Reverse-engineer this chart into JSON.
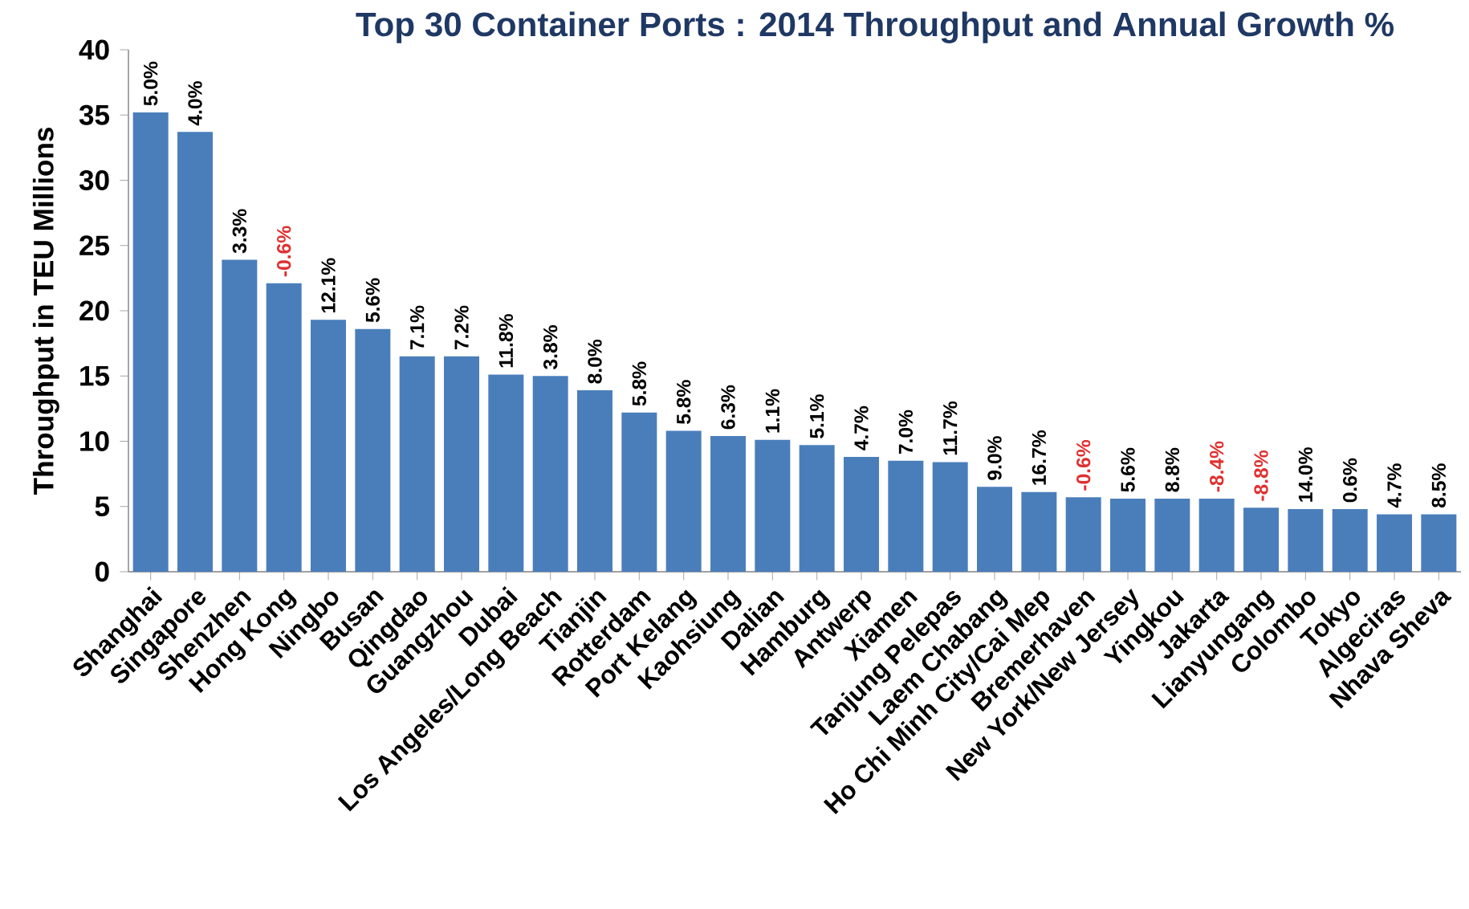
{
  "chart_data": {
    "type": "bar",
    "title": "Top 30 Container Ports : 2014 Throughput and Annual Growth %",
    "ylabel": "Throughput in TEU Millions",
    "categories": [
      "Shanghai",
      "Singapore",
      "Shenzhen",
      "Hong Kong",
      "Ningbo",
      "Busan",
      "Qingdao",
      "Guangzhou",
      "Dubai",
      "Los Angeles/Long Beach",
      "Tianjin",
      "Rotterdam",
      "Port Kelang",
      "Kaohsiung",
      "Dalian",
      "Hamburg",
      "Antwerp",
      "Xiamen",
      "Tanjung Pelepas",
      "Laem Chabang",
      "Ho Chi Minh City/Cai Mep",
      "Bremerhaven",
      "New York/New Jersey",
      "Yingkou",
      "Jakarta",
      "Lianyungang",
      "Colombo",
      "Tokyo",
      "Algeciras",
      "Nhava Sheva"
    ],
    "values": [
      35.2,
      33.7,
      23.9,
      22.1,
      19.3,
      18.6,
      16.5,
      16.5,
      15.1,
      15.0,
      13.9,
      12.2,
      10.8,
      10.4,
      10.1,
      9.7,
      8.8,
      8.5,
      8.4,
      6.5,
      6.1,
      5.7,
      5.6,
      5.6,
      5.6,
      4.9,
      4.8,
      4.8,
      4.4,
      4.4
    ],
    "annotations": [
      {
        "text": "5.0%",
        "x": "Shanghai",
        "y": 35.2
      },
      {
        "text": "4.0%",
        "x": "Singapore",
        "y": 33.7
      },
      {
        "text": "3.3%",
        "x": "Shenzhen",
        "y": 23.9
      },
      {
        "text": "-0.6%",
        "x": "Hong Kong",
        "y": 22.1
      },
      {
        "text": "12.1%",
        "x": "Ningbo",
        "y": 19.3
      },
      {
        "text": "5.6%",
        "x": "Busan",
        "y": 18.6
      },
      {
        "text": "7.1%",
        "x": "Qingdao",
        "y": 16.5
      },
      {
        "text": "7.2%",
        "x": "Guangzhou",
        "y": 16.5
      },
      {
        "text": "11.8%",
        "x": "Dubai",
        "y": 15.1
      },
      {
        "text": "3.8%",
        "x": "Los Angeles/Long Beach",
        "y": 15.0
      },
      {
        "text": "8.0%",
        "x": "Tianjin",
        "y": 13.9
      },
      {
        "text": "5.8%",
        "x": "Rotterdam",
        "y": 12.2
      },
      {
        "text": "5.8%",
        "x": "Port Kelang",
        "y": 10.8
      },
      {
        "text": "6.3%",
        "x": "Kaohsiung",
        "y": 10.4
      },
      {
        "text": "1.1%",
        "x": "Dalian",
        "y": 10.1
      },
      {
        "text": "5.1%",
        "x": "Hamburg",
        "y": 9.7
      },
      {
        "text": "4.7%",
        "x": "Antwerp",
        "y": 8.8
      },
      {
        "text": "7.0%",
        "x": "Xiamen",
        "y": 8.5
      },
      {
        "text": "11.7%",
        "x": "Tanjung Pelepas",
        "y": 8.4
      },
      {
        "text": "9.0%",
        "x": "Laem Chabang",
        "y": 6.5
      },
      {
        "text": "16.7%",
        "x": "Ho Chi Minh City/Cai Mep",
        "y": 6.1
      },
      {
        "text": "-0.6%",
        "x": "Bremerhaven",
        "y": 5.7
      },
      {
        "text": "5.6%",
        "x": "New York/New Jersey",
        "y": 5.6
      },
      {
        "text": "8.8%",
        "x": "Yingkou",
        "y": 5.6
      },
      {
        "text": "-8.4%",
        "x": "Jakarta",
        "y": 5.6
      },
      {
        "text": "-8.8%",
        "x": "Lianyungang",
        "y": 4.9
      },
      {
        "text": "14.0%",
        "x": "Colombo",
        "y": 4.8
      },
      {
        "text": "0.6%",
        "x": "Tokyo",
        "y": 4.8
      },
      {
        "text": "4.7%",
        "x": "Algeciras",
        "y": 4.4
      },
      {
        "text": "8.5%",
        "x": "Nhava Sheva",
        "y": 4.4
      }
    ],
    "color": "#4a7ebb",
    "ylim": [
      0,
      40
    ],
    "yticks": [
      0,
      5,
      10,
      15,
      20,
      25,
      30,
      35,
      40
    ]
  }
}
